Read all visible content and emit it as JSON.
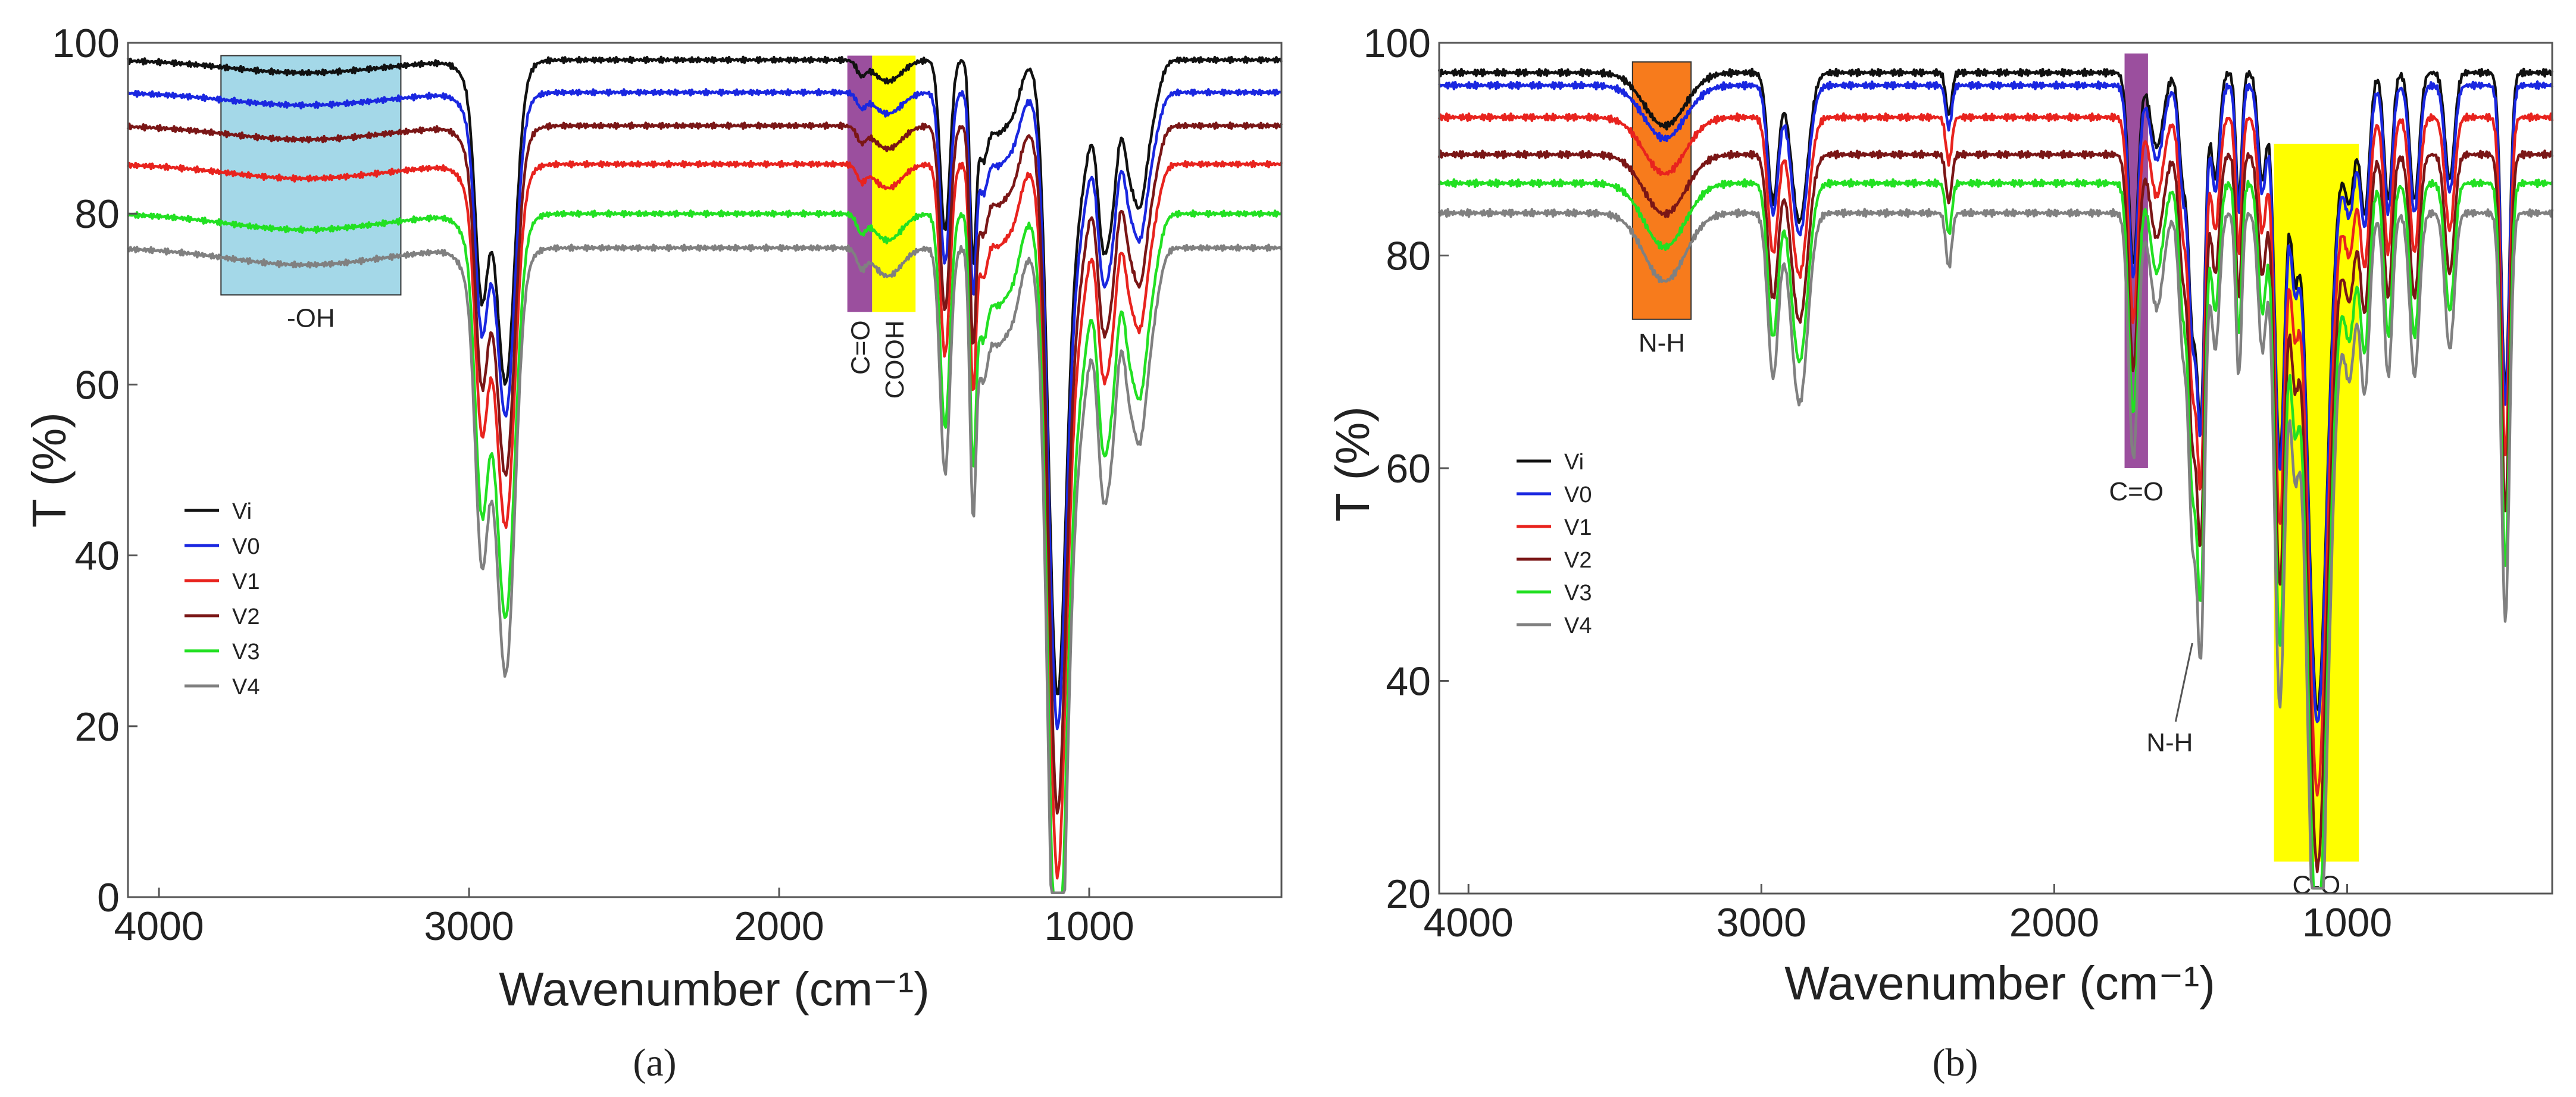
{
  "chart_data": [
    {
      "type": "line",
      "panel_label": "(a)",
      "xlabel": "Wavenumber (cm⁻¹)",
      "ylabel": "T (%)",
      "xlim": [
        4100,
        380
      ],
      "ylim": [
        0,
        100
      ],
      "xticks": [
        4000,
        3000,
        2000,
        1000
      ],
      "yticks": [
        0,
        20,
        40,
        60,
        80,
        100
      ],
      "legend_position": "left-middle",
      "annotations": [
        {
          "label": "-OH",
          "x_from": 3800,
          "x_to": 3220,
          "y_from": 70.5,
          "y_to": 98.5,
          "color": "#a4d8e8",
          "label_position": "below"
        },
        {
          "label": "C=O",
          "x_from": 1780,
          "x_to": 1700,
          "y_from": 68.5,
          "y_to": 98.5,
          "color": "#9b4f9e",
          "label_position": "below-vertical"
        },
        {
          "label": "COOH",
          "x_from": 1700,
          "x_to": 1560,
          "y_from": 68.5,
          "y_to": 98.5,
          "color": "#ffff00",
          "label_position": "below-vertical"
        }
      ],
      "series": [
        {
          "name": "Vi",
          "color": "#111111",
          "offset": 98.0
        },
        {
          "name": "V0",
          "color": "#1a27e0",
          "offset": 94.2
        },
        {
          "name": "V1",
          "color": "#e8231e",
          "offset": 85.8
        },
        {
          "name": "V2",
          "color": "#7a1616",
          "offset": 90.3
        },
        {
          "name": "V3",
          "color": "#22e022",
          "offset": 80.0
        },
        {
          "name": "V4",
          "color": "#808080",
          "offset": 76.0
        }
      ],
      "bands": [
        [
          3530,
          250,
          1.5
        ],
        [
          2960,
          20,
          20
        ],
        [
          2880,
          28,
          30
        ],
        [
          2920,
          55,
          10
        ],
        [
          1735,
          14,
          1.5
        ],
        [
          1650,
          45,
          2.5
        ],
        [
          1465,
          16,
          20
        ],
        [
          1375,
          10,
          22
        ],
        [
          1345,
          16,
          9
        ],
        [
          1300,
          30,
          8
        ],
        [
          1245,
          25,
          5
        ],
        [
          1105,
          28,
          66
        ],
        [
          1060,
          40,
          14
        ],
        [
          960,
          16,
          12
        ],
        [
          930,
          22,
          17
        ],
        [
          875,
          16,
          8
        ],
        [
          840,
          22,
          15
        ],
        [
          800,
          25,
          6
        ],
        [
          1020,
          40,
          6
        ]
      ],
      "band_scale": [
        1.0,
        1.0,
        1.12,
        1.08,
        1.25,
        1.32
      ]
    },
    {
      "type": "line",
      "panel_label": "(b)",
      "xlabel": "Wavenumber (cm⁻¹)",
      "ylabel": "T (%)",
      "xlim": [
        4100,
        300
      ],
      "ylim": [
        20,
        100
      ],
      "xticks": [
        4000,
        3000,
        2000,
        1000
      ],
      "yticks": [
        20,
        40,
        60,
        80,
        100
      ],
      "legend_position": "left-middle",
      "annotations": [
        {
          "label": "N-H",
          "x_from": 3440,
          "x_to": 3240,
          "y_from": 74,
          "y_to": 98.2,
          "color": "#f77b1c",
          "label_position": "below"
        },
        {
          "label": "C=O",
          "x_from": 1760,
          "x_to": 1680,
          "y_from": 60,
          "y_to": 99,
          "color": "#9b4f9e",
          "label_position": "below"
        },
        {
          "label": "N-H",
          "x_from": 1545,
          "x_to": 1545,
          "y_from": 44,
          "y_to": 44,
          "color": "#555555",
          "label_position": "callout"
        },
        {
          "label": "C-O",
          "x_from": 1250,
          "x_to": 960,
          "y_from": 23,
          "y_to": 90.5,
          "color": "#ffff00",
          "label_position": "below"
        }
      ],
      "series": [
        {
          "name": "Vi",
          "color": "#111111",
          "offset": 97.2
        },
        {
          "name": "V0",
          "color": "#1a27e0",
          "offset": 96.0
        },
        {
          "name": "V1",
          "color": "#e8231e",
          "offset": 93.0
        },
        {
          "name": "V2",
          "color": "#7a1616",
          "offset": 89.5
        },
        {
          "name": "V3",
          "color": "#22e022",
          "offset": 86.8
        },
        {
          "name": "V4",
          "color": "#808080",
          "offset": 84.0
        }
      ],
      "bands": [
        [
          3330,
          70,
          5
        ],
        [
          2960,
          18,
          12
        ],
        [
          2870,
          28,
          14
        ],
        [
          2360,
          10,
          4
        ],
        [
          1730,
          16,
          18
        ],
        [
          1650,
          22,
          7
        ],
        [
          1560,
          14,
          10
        ],
        [
          1530,
          12,
          20
        ],
        [
          1500,
          14,
          32
        ],
        [
          1450,
          14,
          10
        ],
        [
          1370,
          10,
          12
        ],
        [
          1290,
          14,
          10
        ],
        [
          1230,
          18,
          36
        ],
        [
          1180,
          14,
          14
        ],
        [
          1105,
          30,
          36
        ],
        [
          1090,
          45,
          25
        ],
        [
          990,
          18,
          10
        ],
        [
          940,
          16,
          13
        ],
        [
          860,
          14,
          12
        ],
        [
          770,
          16,
          12
        ],
        [
          650,
          16,
          10
        ],
        [
          460,
          14,
          30
        ]
      ],
      "band_scale": [
        1.0,
        1.0,
        1.06,
        1.12,
        1.2,
        1.28
      ]
    }
  ]
}
